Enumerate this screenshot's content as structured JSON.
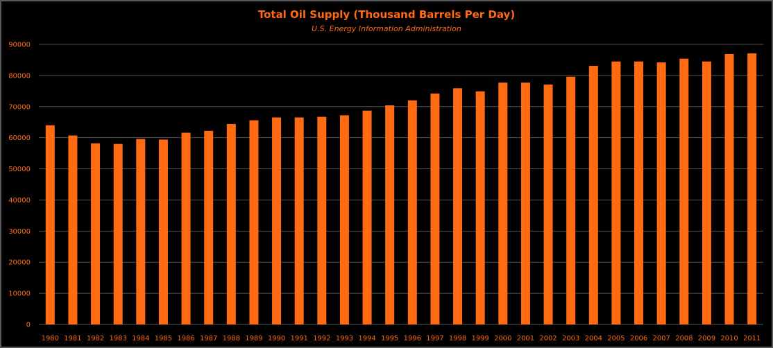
{
  "chart_data": {
    "type": "bar",
    "title": "Total Oil Supply (Thousand Barrels Per Day)",
    "subtitle": "U.S.  Energy Information Administration",
    "xlabel": "",
    "ylabel": "",
    "ylim": [
      0,
      90000
    ],
    "yticks": [
      0,
      10000,
      20000,
      30000,
      40000,
      50000,
      60000,
      70000,
      80000,
      90000
    ],
    "grid": true,
    "legend": "none",
    "bar_color": "#ff6a13",
    "background": "#000000",
    "categories": [
      "1980",
      "1981",
      "1982",
      "1983",
      "1984",
      "1985",
      "1986",
      "1987",
      "1988",
      "1989",
      "1990",
      "1991",
      "1992",
      "1993",
      "1994",
      "1995",
      "1996",
      "1997",
      "1998",
      "1999",
      "2000",
      "2001",
      "2002",
      "2003",
      "2004",
      "2005",
      "2006",
      "2007",
      "2008",
      "2009",
      "2010",
      "2011"
    ],
    "values": [
      64000,
      60700,
      58200,
      58000,
      59600,
      59400,
      61600,
      62200,
      64400,
      65600,
      66500,
      66500,
      66700,
      67200,
      68700,
      70400,
      72000,
      74200,
      75900,
      74900,
      77700,
      77700,
      77100,
      79600,
      83100,
      84500,
      84500,
      84200,
      85400,
      84500,
      86900,
      87100
    ]
  }
}
